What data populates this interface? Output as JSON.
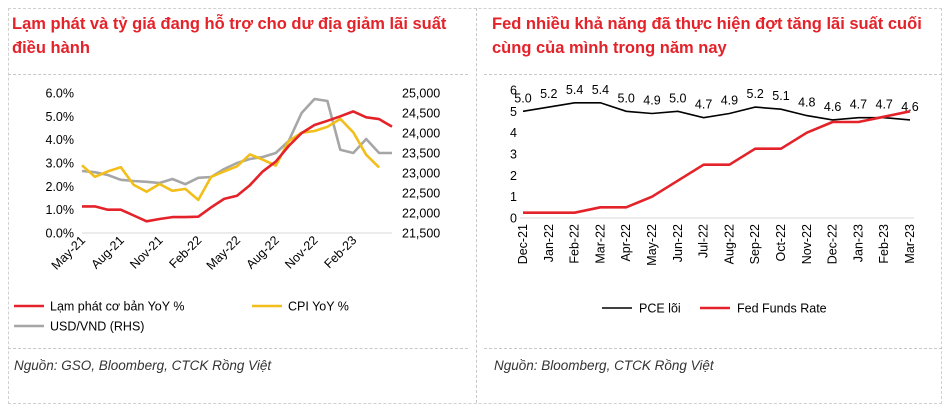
{
  "left": {
    "title": "Lạm phát và tỷ giá đang hỗ trợ cho dư địa giảm lãi suất điều hành",
    "source": "Nguồn: GSO, Bloomberg, CTCK Rồng Việt"
  },
  "right": {
    "title": "Fed nhiều khả năng đã thực hiện đợt tăng lãi suất cuối cùng của mình trong năm nay",
    "source": "Nguồn: Bloomberg, CTCK Rồng Việt"
  },
  "colors": {
    "red": "#e4222a",
    "yellow": "#f2be1a",
    "gray": "#a6a6a6",
    "black": "#000000"
  },
  "chart_data": [
    {
      "type": "line",
      "title": "Lạm phát và tỷ giá đang hỗ trợ cho dư địa giảm lãi suất điều hành",
      "x_tick_labels": [
        "May-21",
        "Aug-21",
        "Nov-21",
        "Feb-22",
        "May-22",
        "Aug-22",
        "Nov-22",
        "Feb-23"
      ],
      "x_tick_index": [
        0,
        3,
        6,
        9,
        12,
        15,
        18,
        21
      ],
      "y_left_ticks": [
        "0.0%",
        "1.0%",
        "2.0%",
        "3.0%",
        "4.0%",
        "5.0%",
        "6.0%"
      ],
      "ylim_left": [
        0,
        6
      ],
      "y_right_ticks": [
        "21,500",
        "22,000",
        "22,500",
        "23,000",
        "23,500",
        "24,000",
        "24,500",
        "25,000"
      ],
      "ylim_right": [
        21500,
        25000
      ],
      "legend": [
        "Lạm phát cơ bản YoY %",
        "CPI YoY %",
        "USD/VND (RHS)"
      ],
      "series": [
        {
          "name": "Lạm phát cơ bản YoY %",
          "axis": "left",
          "color": "#e4222a",
          "values": [
            1.14,
            1.14,
            1.0,
            1.0,
            0.75,
            0.5,
            0.6,
            0.68,
            0.68,
            0.7,
            1.1,
            1.46,
            1.6,
            2.05,
            2.64,
            3.06,
            3.73,
            4.28,
            4.63,
            4.81,
            5.0,
            5.21,
            4.96,
            4.88,
            4.56
          ]
        },
        {
          "name": "CPI YoY %",
          "axis": "left",
          "color": "#f2be1a",
          "values": [
            2.9,
            2.41,
            2.64,
            2.82,
            2.06,
            1.77,
            2.1,
            1.81,
            1.89,
            1.42,
            2.41,
            2.64,
            2.86,
            3.37,
            3.14,
            2.89,
            3.94,
            4.3,
            4.37,
            4.55,
            4.89,
            4.31,
            3.35,
            2.81
          ]
        },
        {
          "name": "USD/VND (RHS)",
          "axis": "right",
          "color": "#a6a6a6",
          "values": [
            23050,
            23020,
            22950,
            22830,
            22800,
            22780,
            22750,
            22850,
            22720,
            22880,
            22900,
            23100,
            23250,
            23350,
            23400,
            23500,
            23800,
            24500,
            24850,
            24800,
            23580,
            23500,
            23850,
            23500,
            23500
          ]
        }
      ]
    },
    {
      "type": "line",
      "title": "Fed nhiều khả năng đã thực hiện đợt tăng lãi suất cuối cùng của mình trong năm nay",
      "categories": [
        "Dec-21",
        "Jan-22",
        "Feb-22",
        "Mar-22",
        "Apr-22",
        "May-22",
        "Jun-22",
        "Jul-22",
        "Aug-22",
        "Sep-22",
        "Oct-22",
        "Nov-22",
        "Dec-22",
        "Jan-23",
        "Feb-23",
        "Mar-23"
      ],
      "y_ticks": [
        "0",
        "1",
        "2",
        "3",
        "4",
        "5",
        "6"
      ],
      "ylim": [
        0,
        6
      ],
      "legend": [
        "PCE lõi",
        "Fed Funds Rate"
      ],
      "series": [
        {
          "name": "PCE lõi",
          "color": "#000000",
          "values": [
            5.0,
            5.2,
            5.4,
            5.4,
            5.0,
            4.9,
            5.0,
            4.7,
            4.9,
            5.2,
            5.1,
            4.8,
            4.6,
            4.7,
            4.7,
            4.6
          ],
          "labels": [
            "5.0",
            "5.2",
            "5.4",
            "5.4",
            "5.0",
            "4.9",
            "5.0",
            "4.7",
            "4.9",
            "5.2",
            "5.1",
            "4.8",
            "4.6",
            "4.7",
            "4.7",
            "4.6"
          ]
        },
        {
          "name": "Fed Funds Rate",
          "color": "#e4222a",
          "values": [
            0.25,
            0.25,
            0.25,
            0.5,
            0.5,
            1.0,
            1.75,
            2.5,
            2.5,
            3.25,
            3.25,
            4.0,
            4.5,
            4.5,
            4.75,
            5.0
          ]
        }
      ]
    }
  ]
}
